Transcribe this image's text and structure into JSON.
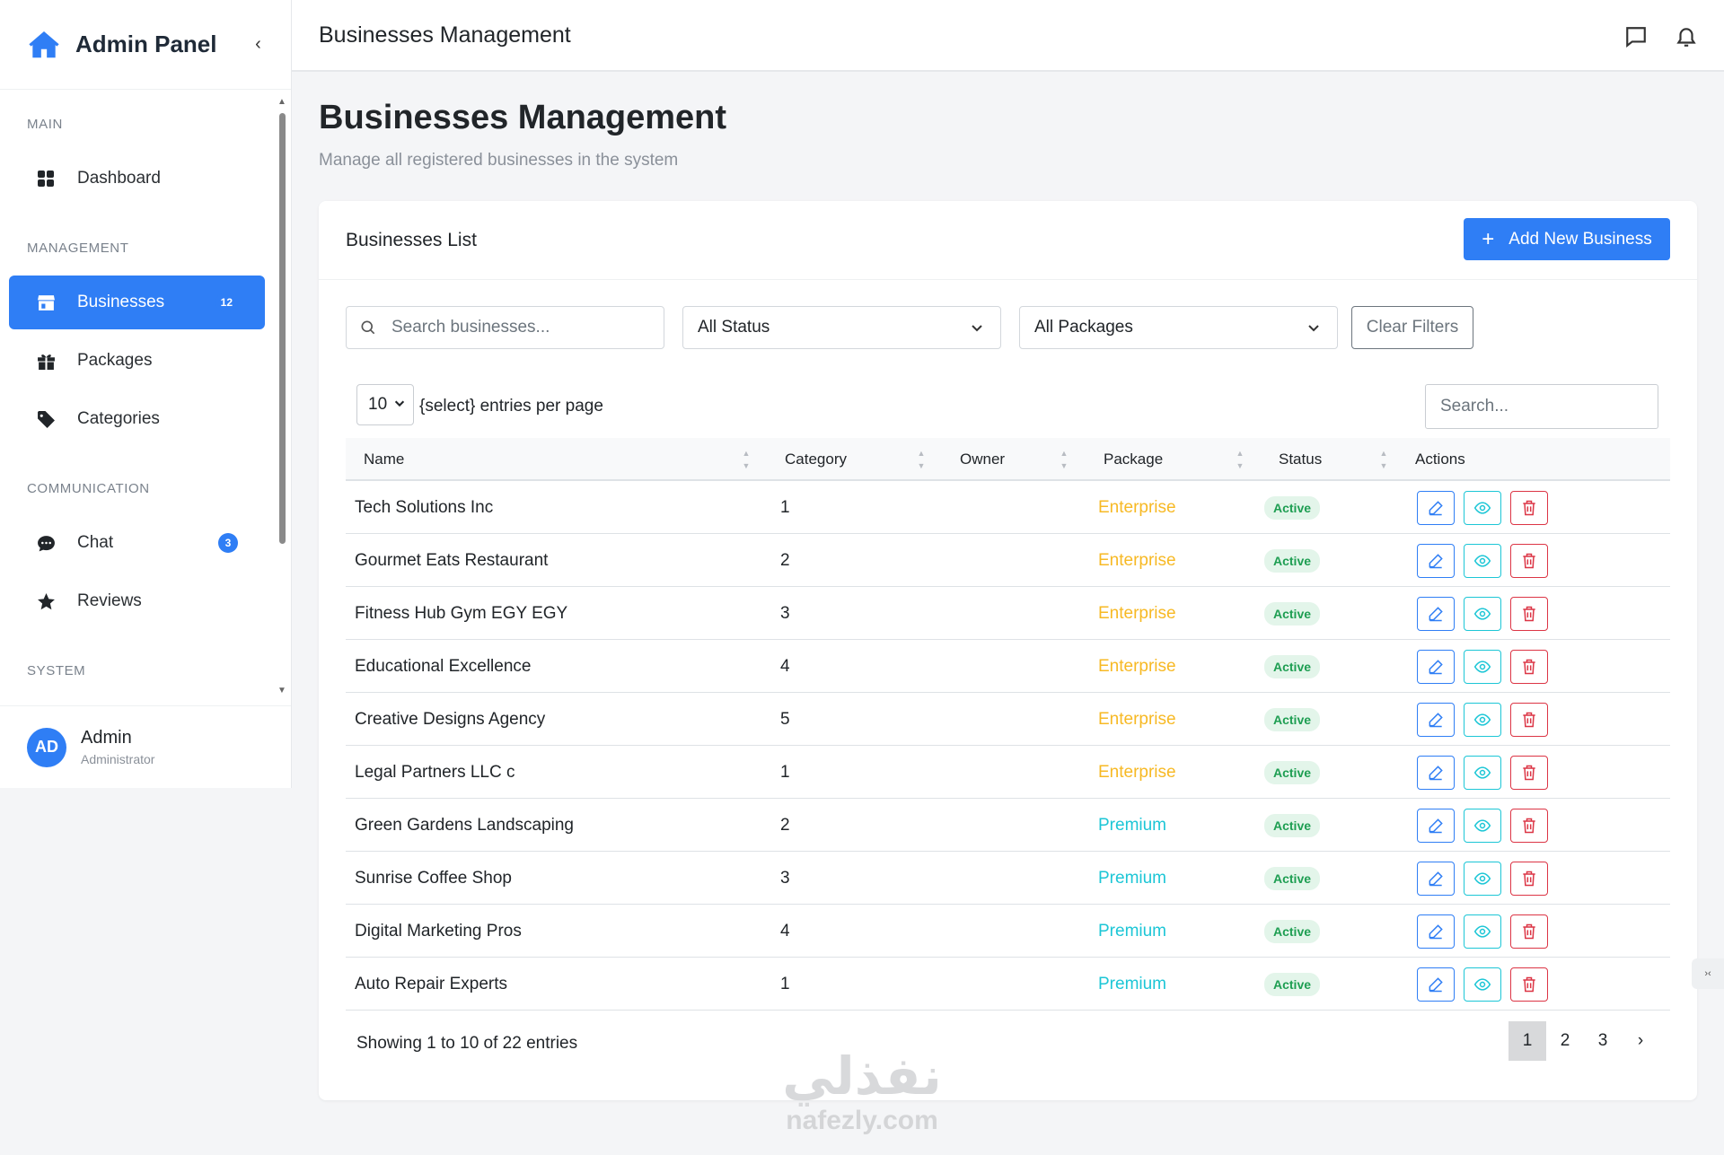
{
  "sidebar": {
    "brand": "Admin Panel",
    "collapse": "‹",
    "sections": {
      "main": "MAIN",
      "management": "MANAGEMENT",
      "communication": "COMMUNICATION",
      "system": "SYSTEM"
    },
    "items": {
      "dashboard": {
        "label": "Dashboard"
      },
      "businesses": {
        "label": "Businesses",
        "badge": "12"
      },
      "packages": {
        "label": "Packages"
      },
      "categories": {
        "label": "Categories"
      },
      "chat": {
        "label": "Chat",
        "badge": "3"
      },
      "reviews": {
        "label": "Reviews"
      }
    },
    "user": {
      "initials": "AD",
      "name": "Admin",
      "role": "Administrator"
    }
  },
  "topbar": {
    "title": "Businesses Management"
  },
  "page": {
    "title": "Businesses Management",
    "subtitle": "Manage all registered businesses in the system"
  },
  "card": {
    "title": "Businesses List",
    "add_button": "Add New Business",
    "filters": {
      "search_placeholder": "Search businesses...",
      "status_value": "All Status",
      "package_value": "All Packages",
      "clear_label": "Clear Filters"
    },
    "table_controls": {
      "per_page_value": "10",
      "per_page_label": "{select} entries per page",
      "search_placeholder": "Search..."
    },
    "columns": [
      "Name",
      "Category",
      "Owner",
      "Package",
      "Status",
      "Actions"
    ],
    "rows": [
      {
        "name": "Tech Solutions Inc",
        "category": "1",
        "owner": "",
        "package": "Enterprise",
        "status": "Active"
      },
      {
        "name": "Gourmet Eats Restaurant",
        "category": "2",
        "owner": "",
        "package": "Enterprise",
        "status": "Active"
      },
      {
        "name": "Fitness Hub Gym EGY EGY",
        "category": "3",
        "owner": "",
        "package": "Enterprise",
        "status": "Active"
      },
      {
        "name": "Educational Excellence",
        "category": "4",
        "owner": "",
        "package": "Enterprise",
        "status": "Active"
      },
      {
        "name": "Creative Designs Agency",
        "category": "5",
        "owner": "",
        "package": "Enterprise",
        "status": "Active"
      },
      {
        "name": "Legal Partners LLC c",
        "category": "1",
        "owner": "",
        "package": "Enterprise",
        "status": "Active"
      },
      {
        "name": "Green Gardens Landscaping",
        "category": "2",
        "owner": "",
        "package": "Premium",
        "status": "Active"
      },
      {
        "name": "Sunrise Coffee Shop",
        "category": "3",
        "owner": "",
        "package": "Premium",
        "status": "Active"
      },
      {
        "name": "Digital Marketing Pros",
        "category": "4",
        "owner": "",
        "package": "Premium",
        "status": "Active"
      },
      {
        "name": "Auto Repair Experts",
        "category": "1",
        "owner": "",
        "package": "Premium",
        "status": "Active"
      }
    ],
    "footer": {
      "info": "Showing 1 to 10 of 22 entries",
      "pages": [
        "1",
        "2",
        "3"
      ],
      "current_page": "1",
      "next": "›"
    }
  },
  "watermark": {
    "arabic": "نفذلي",
    "latin": "nafezly.com"
  },
  "colors": {
    "primary": "#2f7ef5",
    "enterprise": "#f7b924",
    "premium": "#1cc6d6",
    "active_text": "#1e9e52",
    "danger": "#dc3545"
  }
}
